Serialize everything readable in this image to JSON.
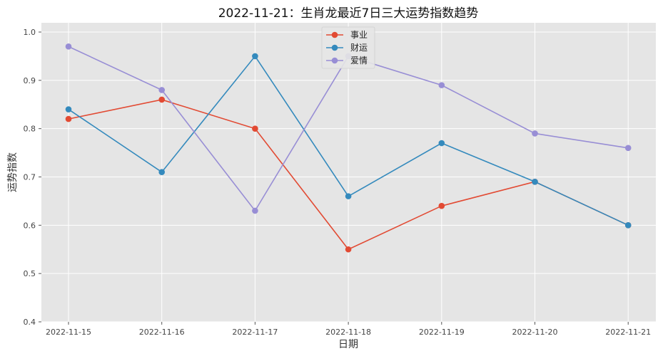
{
  "chart_data": {
    "type": "line",
    "title": "2022-11-21：生肖龙最近7日三大运势指数趋势",
    "xlabel": "日期",
    "ylabel": "运势指数",
    "categories": [
      "2022-11-15",
      "2022-11-16",
      "2022-11-17",
      "2022-11-18",
      "2022-11-19",
      "2022-11-20",
      "2022-11-21"
    ],
    "ylim": [
      0.4,
      1.0
    ],
    "yticks": [
      "0.4",
      "0.5",
      "0.6",
      "0.7",
      "0.8",
      "0.9",
      "1.0"
    ],
    "grid": true,
    "legend_position": "top-center",
    "series": [
      {
        "name": "事业",
        "color": "#E24A33",
        "values": [
          0.82,
          0.86,
          0.8,
          0.55,
          0.64,
          0.69,
          0.6
        ]
      },
      {
        "name": "财运",
        "color": "#348ABD",
        "values": [
          0.84,
          0.71,
          0.95,
          0.66,
          0.77,
          0.69,
          0.6
        ]
      },
      {
        "name": "爱情",
        "color": "#988ED5",
        "values": [
          0.97,
          0.88,
          0.63,
          0.95,
          0.89,
          0.79,
          0.76
        ]
      }
    ]
  }
}
